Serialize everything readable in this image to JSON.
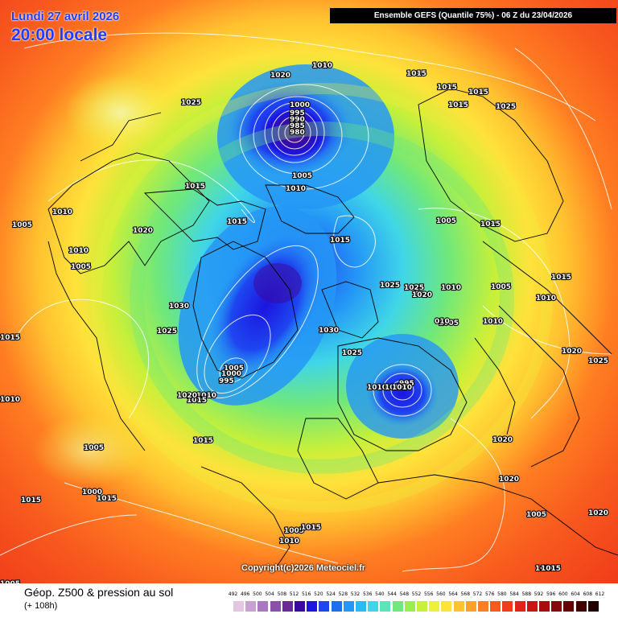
{
  "header": {
    "date_line": "Lundi 27 avril 2026",
    "time_line": "20:00 locale",
    "model_info": "Ensemble GEFS  (Quantile 75%) - 06 Z du 23/04/2026"
  },
  "footer": {
    "title": "Géop. Z500 & pression au sol",
    "forecast_hour": "(+ 108h)",
    "copyright": "Copyright(c)2026 Meteociel.fr"
  },
  "scale": {
    "ticks": [
      "492",
      "496",
      "500",
      "504",
      "508",
      "512",
      "516",
      "520",
      "524",
      "528",
      "532",
      "536",
      "540",
      "544",
      "548",
      "552",
      "556",
      "560",
      "564",
      "568",
      "572",
      "576",
      "580",
      "584",
      "588",
      "592",
      "596",
      "600",
      "604",
      "608",
      "612"
    ],
    "colors": [
      "#e2c6e2",
      "#c8a0d2",
      "#aa78c0",
      "#8a50ac",
      "#6a2a98",
      "#3a0aa0",
      "#1c14e0",
      "#1e46f0",
      "#1f6ef0",
      "#2496f6",
      "#2abaf6",
      "#3fd6e8",
      "#5ae6b8",
      "#70e87a",
      "#9aee50",
      "#c6f03a",
      "#eef03a",
      "#ffe23a",
      "#ffc230",
      "#ffa028",
      "#ff7e22",
      "#f85a1e",
      "#f03c1a",
      "#e22218",
      "#cc1414",
      "#a80c0c",
      "#860808",
      "#640404",
      "#420202",
      "#200000"
    ]
  },
  "isobars": {
    "low_north_atlantic": [
      "1000",
      "995",
      "990",
      "985",
      "980",
      "1005",
      "1010"
    ],
    "low_greenland": [
      "1005",
      "1000",
      "995",
      "1010",
      "1015",
      "1020"
    ],
    "low_scandinavia": [
      "995",
      "1010",
      "1005",
      "1010"
    ],
    "labels_general": [
      "1025",
      "1020",
      "1010",
      "1015",
      "1015",
      "1015",
      "1015",
      "1025",
      "1015",
      "1015",
      "1005",
      "1010",
      "1010",
      "1005",
      "1020",
      "1015",
      "1030",
      "1025",
      "1030",
      "1025",
      "1025",
      "1025",
      "1020",
      "1010",
      "1005",
      "1005",
      "1015",
      "1015",
      "1010",
      "1020",
      "1025",
      "1015",
      "1010",
      "1005",
      "1000",
      "1015",
      "1015",
      "1020",
      "1020",
      "1005",
      "1020",
      "1015",
      "1005",
      "1015",
      "1010",
      "1010",
      "1005",
      "1005",
      "1010",
      "1015",
      "010",
      "1015"
    ]
  }
}
